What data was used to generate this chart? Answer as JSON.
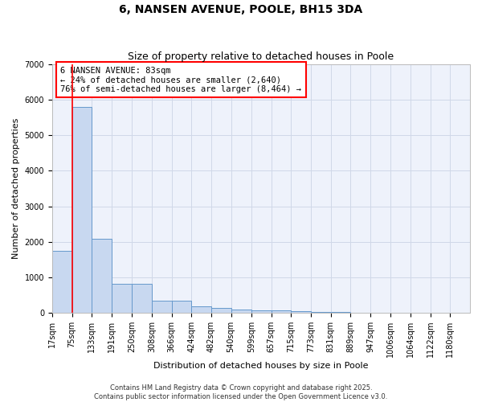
{
  "title": "6, NANSEN AVENUE, POOLE, BH15 3DA",
  "subtitle": "Size of property relative to detached houses in Poole",
  "xlabel": "Distribution of detached houses by size in Poole",
  "ylabel": "Number of detached properties",
  "bar_color": "#c8d8f0",
  "bar_edge_color": "#6699cc",
  "background_color": "#eef2fb",
  "grid_color": "#d0d8e8",
  "annotation_text": "6 NANSEN AVENUE: 83sqm\n← 24% of detached houses are smaller (2,640)\n76% of semi-detached houses are larger (8,464) →",
  "red_line_x": 75,
  "categories": [
    "17sqm",
    "75sqm",
    "133sqm",
    "191sqm",
    "250sqm",
    "308sqm",
    "366sqm",
    "424sqm",
    "482sqm",
    "540sqm",
    "599sqm",
    "657sqm",
    "715sqm",
    "773sqm",
    "831sqm",
    "889sqm",
    "947sqm",
    "1006sqm",
    "1064sqm",
    "1122sqm",
    "1180sqm"
  ],
  "bin_edges": [
    17,
    75,
    133,
    191,
    250,
    308,
    366,
    424,
    482,
    540,
    599,
    657,
    715,
    773,
    831,
    889,
    947,
    1006,
    1064,
    1122,
    1180
  ],
  "values": [
    1750,
    5800,
    2080,
    820,
    820,
    350,
    350,
    185,
    150,
    95,
    75,
    75,
    45,
    28,
    18,
    8,
    4,
    4,
    4,
    4,
    4
  ],
  "ylim": [
    0,
    7000
  ],
  "yticks": [
    0,
    1000,
    2000,
    3000,
    4000,
    5000,
    6000,
    7000
  ],
  "copyright_text": "Contains HM Land Registry data © Crown copyright and database right 2025.\nContains public sector information licensed under the Open Government Licence v3.0.",
  "title_fontsize": 10,
  "subtitle_fontsize": 9,
  "annotation_fontsize": 7.5,
  "axis_label_fontsize": 8,
  "tick_fontsize": 7,
  "copyright_fontsize": 6
}
